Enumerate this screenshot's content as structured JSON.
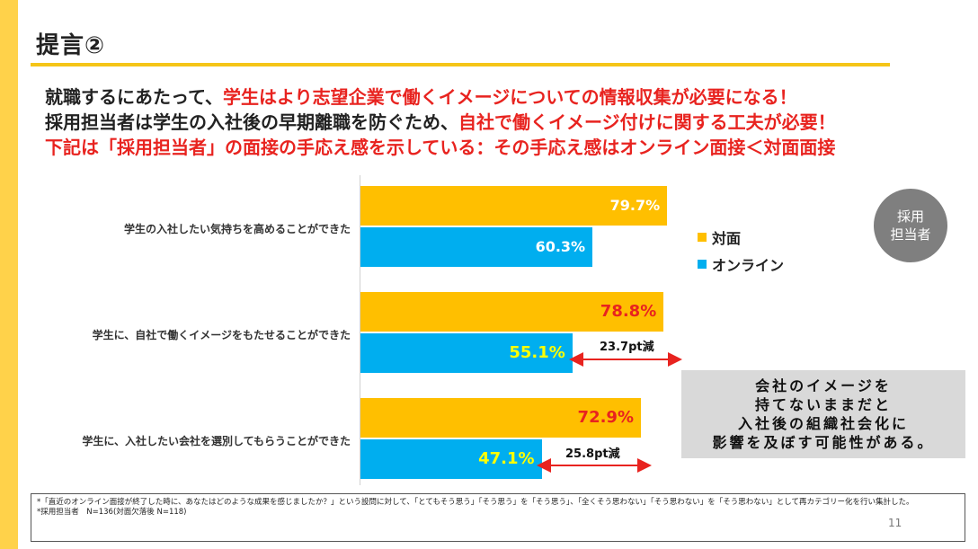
{
  "slide": {
    "title": "提言②",
    "page_number": "11",
    "badge": {
      "line1": "採用",
      "line2": "担当者"
    }
  },
  "headline": {
    "line1_dark": "就職するにあたって、",
    "line1_red": "学生はより志望企業で働くイメージについての情報収集が必要になる！",
    "line2_dark": "採用担当者は学生の入社後の早期離職を防ぐため、",
    "line2_red": "自社で働くイメージ付けに関する工夫が必要！",
    "line3_red": "下記は「採用担当者」の面接の手応え感を示している：その手応え感はオンライン面接＜対面面接"
  },
  "legend": [
    {
      "label": "対面",
      "color": "#FFBF00"
    },
    {
      "label": "オンライン",
      "color": "#00AEEF"
    }
  ],
  "chart_data": {
    "type": "bar",
    "orientation": "horizontal",
    "categories": [
      "学生の入社したい気持ちを高めることができた",
      "学生に、自社で働くイメージをもたせることができた",
      "学生に、入社したい会社を選別してもらうことができた"
    ],
    "series": [
      {
        "name": "対面",
        "values": [
          79.7,
          78.8,
          72.9
        ],
        "labels": [
          "79.7%",
          "78.8%",
          "72.9%"
        ],
        "color": "#FFBF00"
      },
      {
        "name": "オンライン",
        "values": [
          60.3,
          55.1,
          47.1
        ],
        "labels": [
          "60.3%",
          "55.1%",
          "47.1%"
        ],
        "color": "#00AEEF"
      }
    ],
    "annotations": [
      {
        "category": 1,
        "label": "23.7pt減"
      },
      {
        "category": 2,
        "label": "25.8pt減"
      }
    ],
    "xlim": [
      0,
      100
    ],
    "grid": false,
    "legend_position": "right"
  },
  "callout": {
    "line1": "会社のイメージを",
    "line2": "持てないままだと",
    "line3": "入社後の組織社会化に",
    "line4": "影響を及ぼす可能性がある。"
  },
  "footnote": {
    "line1": "*「直近のオンライン面接が終了した時に、あなたはどのような成果を感じましたか？」という設問に対して、「とてもそう思う」「そう思う」を「そう思う」、「全くそう思わない」「そう思わない」を「そう思わない」として再カテゴリー化を行い集計した。",
    "line2": "*採用担当者　N=136(対面欠落後 N=118)"
  }
}
